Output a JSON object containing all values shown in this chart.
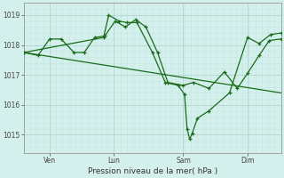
{
  "bg_color": "#d4f0ec",
  "grid_color_major": "#aacfc8",
  "grid_color_minor": "#c4e5e0",
  "line_color": "#1a6b1a",
  "xlabel": "Pression niveau de la mer( hPa )",
  "ylim": [
    1014.4,
    1019.4
  ],
  "yticks": [
    1015,
    1016,
    1017,
    1018,
    1019
  ],
  "xlim": [
    0.0,
    1.0
  ],
  "day_positions": [
    0.1,
    0.35,
    0.62,
    0.87
  ],
  "day_labels": [
    "Ven",
    "Lun",
    "Sam",
    "Dim"
  ],
  "line1_x": [
    0.0,
    0.055,
    0.1,
    0.145,
    0.195,
    0.235,
    0.275,
    0.315,
    0.355,
    0.395,
    0.435,
    0.475,
    0.52,
    0.56,
    0.62,
    0.66,
    0.72,
    0.78,
    0.83,
    0.87,
    0.915,
    0.955,
    1.0
  ],
  "line1_y": [
    1017.75,
    1017.65,
    1018.2,
    1018.2,
    1017.75,
    1017.75,
    1018.25,
    1018.3,
    1018.8,
    1018.6,
    1018.85,
    1018.6,
    1017.75,
    1016.75,
    1016.65,
    1016.75,
    1016.55,
    1017.1,
    1016.55,
    1017.05,
    1017.65,
    1018.15,
    1018.2
  ],
  "line2_x": [
    0.0,
    0.31,
    0.33,
    0.37,
    0.4,
    0.44,
    0.5,
    0.55,
    0.6,
    0.625,
    0.635,
    0.645,
    0.655,
    0.675,
    0.72,
    0.8,
    0.87,
    0.915,
    0.96,
    1.0
  ],
  "line2_y": [
    1017.75,
    1018.25,
    1019.0,
    1018.8,
    1018.75,
    1018.75,
    1017.75,
    1016.75,
    1016.65,
    1016.35,
    1015.2,
    1014.85,
    1015.05,
    1015.55,
    1015.8,
    1016.4,
    1018.25,
    1018.05,
    1018.35,
    1018.4
  ],
  "line3_x": [
    0.0,
    1.0
  ],
  "line3_y": [
    1017.75,
    1016.4
  ]
}
